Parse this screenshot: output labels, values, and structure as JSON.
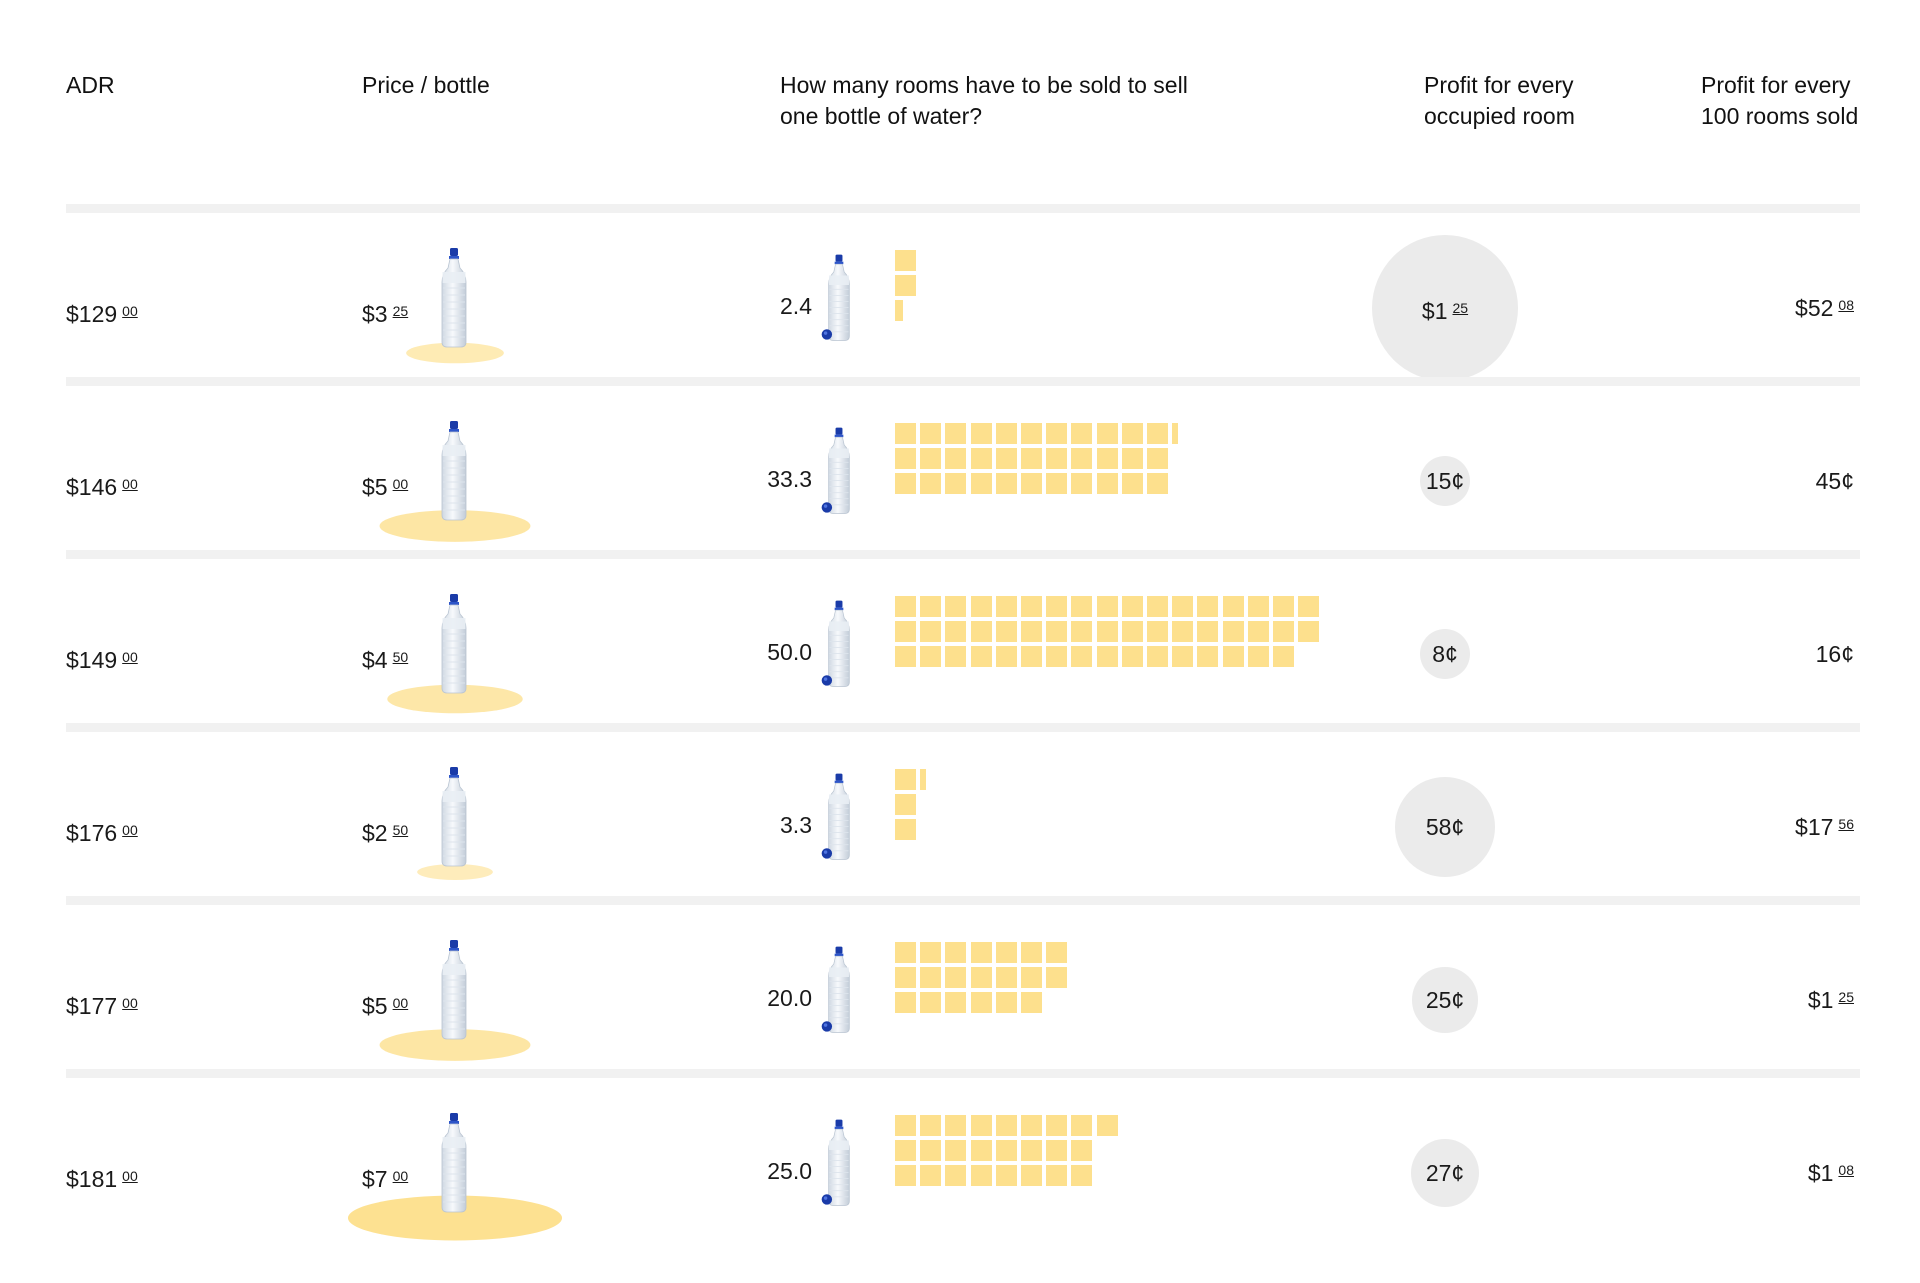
{
  "chart_data": {
    "type": "table",
    "columns": [
      "ADR",
      "Price / bottle",
      "How many rooms have to be sold to sell one bottle of water?",
      "Profit for every occupied room",
      "Profit for every 100 rooms sold"
    ],
    "rows": [
      {
        "adr_dollars": "$129",
        "adr_cents": "00",
        "price_dollars": "$3",
        "price_cents": "25",
        "price_value": 3.25,
        "rooms": "2.4",
        "rooms_value": 2.4,
        "profit_room": {
          "dollars": "$1",
          "cents": "25"
        },
        "profit_room_value": 1.25,
        "profit_100": {
          "dollars": "$52",
          "cents": "08"
        }
      },
      {
        "adr_dollars": "$146",
        "adr_cents": "00",
        "price_dollars": "$5",
        "price_cents": "00",
        "price_value": 5.0,
        "rooms": "33.3",
        "rooms_value": 33.3,
        "profit_room": {
          "dollars": "15¢",
          "cents": ""
        },
        "profit_room_value": 0.15,
        "profit_100": {
          "dollars": "45¢",
          "cents": ""
        }
      },
      {
        "adr_dollars": "$149",
        "adr_cents": "00",
        "price_dollars": "$4",
        "price_cents": "50",
        "price_value": 4.5,
        "rooms": "50.0",
        "rooms_value": 50.0,
        "profit_room": {
          "dollars": "8¢",
          "cents": ""
        },
        "profit_room_value": 0.08,
        "profit_100": {
          "dollars": "16¢",
          "cents": ""
        }
      },
      {
        "adr_dollars": "$176",
        "adr_cents": "00",
        "price_dollars": "$2",
        "price_cents": "50",
        "price_value": 2.5,
        "rooms": "3.3",
        "rooms_value": 3.3,
        "profit_room": {
          "dollars": "58¢",
          "cents": ""
        },
        "profit_room_value": 0.58,
        "profit_100": {
          "dollars": "$17",
          "cents": "56"
        }
      },
      {
        "adr_dollars": "$177",
        "adr_cents": "00",
        "price_dollars": "$5",
        "price_cents": "00",
        "price_value": 5.0,
        "rooms": "20.0",
        "rooms_value": 20.0,
        "profit_room": {
          "dollars": "25¢",
          "cents": ""
        },
        "profit_room_value": 0.25,
        "profit_100": {
          "dollars": "$1",
          "cents": "25"
        }
      },
      {
        "adr_dollars": "$181",
        "adr_cents": "00",
        "price_dollars": "$7",
        "price_cents": "00",
        "price_value": 7.0,
        "rooms": "25.0",
        "rooms_value": 25.0,
        "profit_room": {
          "dollars": "27¢",
          "cents": ""
        },
        "profit_room_value": 0.27,
        "profit_100": {
          "dollars": "$1",
          "cents": "08"
        }
      }
    ]
  },
  "headers": {
    "adr": "ADR",
    "price": "Price / bottle",
    "rooms_line1": "How many rooms have to be sold to sell",
    "rooms_line2": "one bottle of water?",
    "profit_line1": "Profit for every",
    "profit_line2": "occupied room",
    "profit100_line1": "Profit for every",
    "profit100_line2": "100 rooms sold"
  },
  "colors": {
    "square": "#fde08d",
    "ellipse": "#fde08d",
    "bubble": "#ebebeb",
    "divider": "#f1f1f1",
    "bottle_cap": "#1a3ba8"
  }
}
